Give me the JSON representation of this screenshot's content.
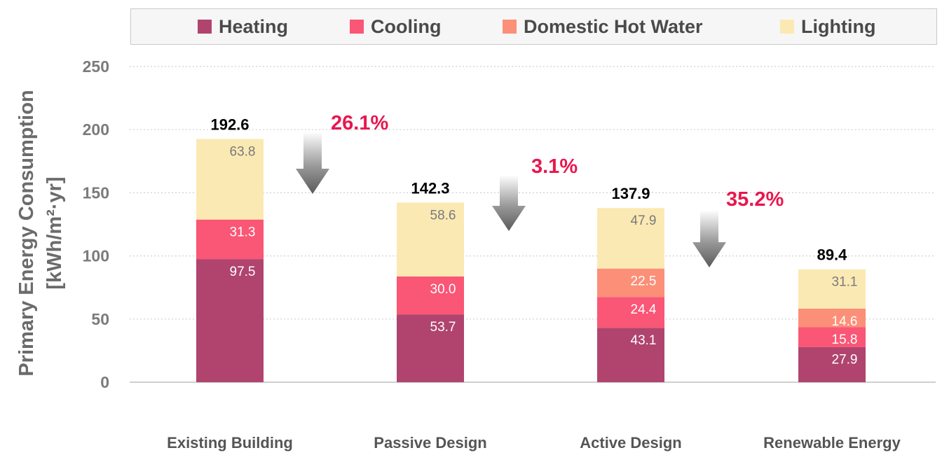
{
  "chart_data": {
    "type": "bar",
    "stacked": true,
    "categories": [
      "Existing Building",
      "Passive Design",
      "Active Design",
      "Renewable Energy"
    ],
    "series": [
      {
        "name": "Heating",
        "values": [
          97.5,
          53.7,
          43.1,
          27.9
        ],
        "color": "#b0446e",
        "label_color": "#ffffff"
      },
      {
        "name": "Cooling",
        "values": [
          31.3,
          30.0,
          24.4,
          15.8
        ],
        "color": "#fa5675",
        "label_color": "#ffffff"
      },
      {
        "name": "Domestic Hot Water",
        "values": [
          0,
          0,
          22.5,
          14.6
        ],
        "color": "#fc8f77",
        "label_color": "#ffffff"
      },
      {
        "name": "Lighting",
        "values": [
          63.8,
          58.6,
          47.9,
          31.1
        ],
        "color": "#fbe9b4",
        "label_color": "#7a7a7a"
      }
    ],
    "segment_labels": [
      [
        "97.5",
        "31.3",
        "",
        "63.8"
      ],
      [
        "53.7",
        "30.0",
        "",
        "58.6"
      ],
      [
        "43.1",
        "24.4",
        "22.5",
        "47.9"
      ],
      [
        "27.9",
        "15.8",
        "14.6",
        "31.1"
      ]
    ],
    "totals": [
      "192.6",
      "142.3",
      "137.9",
      "89.4"
    ],
    "reductions": [
      "26.1%",
      "3.1%",
      "35.2%"
    ],
    "reduction_color": "#e8174e",
    "ylabel_line1": "Primary Energy Consumption",
    "ylabel_line2": "[kWh/m²·yr]",
    "ylim": [
      0,
      250
    ],
    "yticks": [
      "0",
      "50",
      "100",
      "150",
      "200",
      "250"
    ],
    "grid": "dotted horizontal",
    "legend_placement": "top"
  }
}
